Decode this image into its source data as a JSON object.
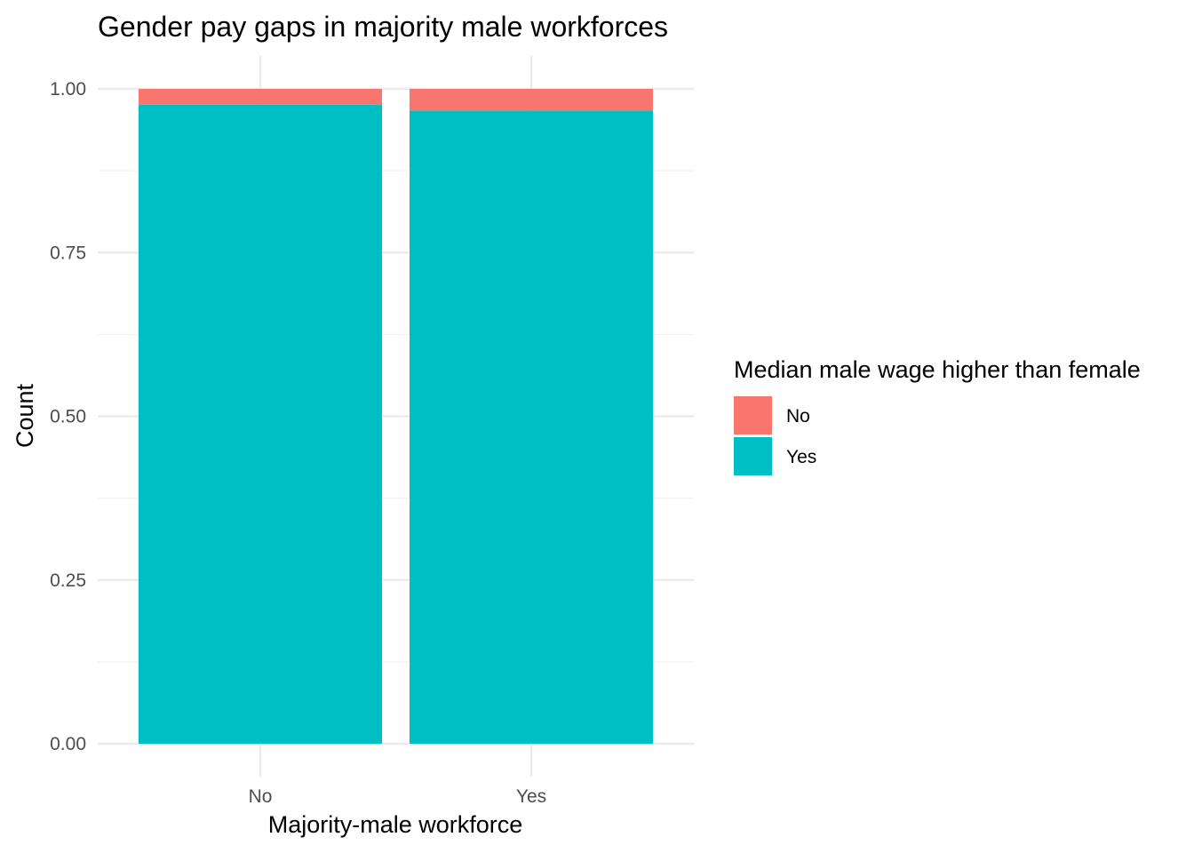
{
  "chart_data": {
    "type": "bar",
    "stacked": true,
    "position": "fill",
    "title": "Gender pay gaps in majority male workforces",
    "xlabel": "Majority-male workforce",
    "ylabel": "Count",
    "categories": [
      "No",
      "Yes"
    ],
    "series": [
      {
        "name": "No",
        "color": "#F8766D",
        "values": [
          0.024,
          0.033
        ]
      },
      {
        "name": "Yes",
        "color": "#00BFC4",
        "values": [
          0.976,
          0.967
        ]
      }
    ],
    "ylim": [
      0,
      1
    ],
    "yticks": [
      0,
      0.25,
      0.5,
      0.75,
      1
    ],
    "ytick_labels": [
      "0.00",
      "0.25",
      "0.50",
      "0.75",
      "1.00"
    ],
    "grid": true,
    "legend": {
      "title": "Median male wage higher than female",
      "placement": "right"
    }
  }
}
